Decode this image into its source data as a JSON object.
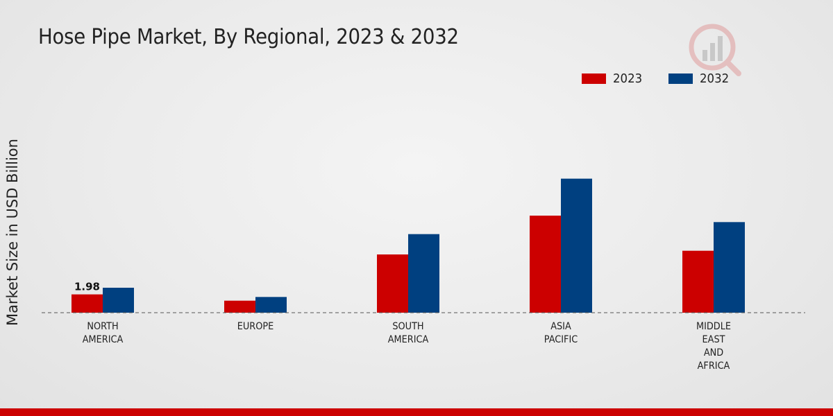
{
  "chart_data": {
    "type": "bar",
    "title": "Hose Pipe Market, By Regional, 2023 & 2032",
    "ylabel": "Market Size in USD Billion",
    "xlabel": "",
    "categories": [
      [
        "NORTH",
        "AMERICA"
      ],
      [
        "EUROPE"
      ],
      [
        "SOUTH",
        "AMERICA"
      ],
      [
        "ASIA",
        "PACIFIC"
      ],
      [
        "MIDDLE",
        "EAST",
        "AND",
        "AFRICA"
      ]
    ],
    "series": [
      {
        "name": "2023",
        "color": "#cc0000",
        "values": [
          1.98,
          1.3,
          6.3,
          10.5,
          6.7
        ]
      },
      {
        "name": "2032",
        "color": "#004080",
        "values": [
          2.7,
          1.7,
          8.5,
          14.5,
          9.8
        ]
      }
    ],
    "data_labels": [
      {
        "series": 0,
        "category": 0,
        "text": "1.98"
      }
    ],
    "ylim": [
      0,
      24
    ],
    "grid": false,
    "legend_position": "top-right",
    "baseline_style": "dashed"
  },
  "accent_color": "#cc0000",
  "logo_icon": "market-research-logo-icon"
}
